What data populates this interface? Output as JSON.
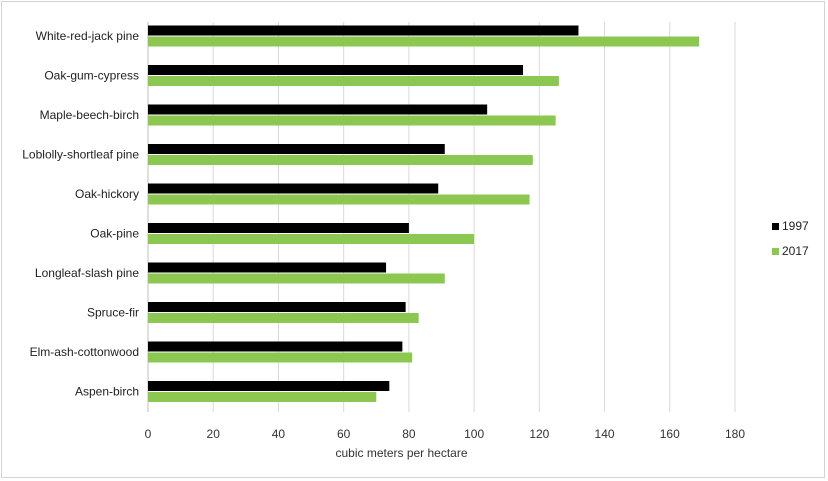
{
  "chart_data": {
    "type": "bar",
    "orientation": "horizontal",
    "categories": [
      "White-red-jack pine",
      "Oak-gum-cypress",
      "Maple-beech-birch",
      "Loblolly-shortleaf pine",
      "Oak-hickory",
      "Oak-pine",
      "Longleaf-slash pine",
      "Spruce-fir",
      "Elm-ash-cottonwood",
      "Aspen-birch"
    ],
    "series": [
      {
        "name": "1997",
        "color": "#000000",
        "values": [
          132,
          115,
          104,
          91,
          89,
          80,
          73,
          79,
          78,
          74
        ]
      },
      {
        "name": "2017",
        "color": "#8cc751",
        "values": [
          169,
          126,
          125,
          118,
          117,
          100,
          91,
          83,
          81,
          70
        ]
      }
    ],
    "xlabel": "cubic meters per hectare",
    "ylabel": "",
    "xlim": [
      0,
      180
    ],
    "ticks": [
      0,
      20,
      40,
      60,
      80,
      100,
      120,
      140,
      160,
      180
    ],
    "grid": "vertical",
    "legend_position": "right"
  }
}
